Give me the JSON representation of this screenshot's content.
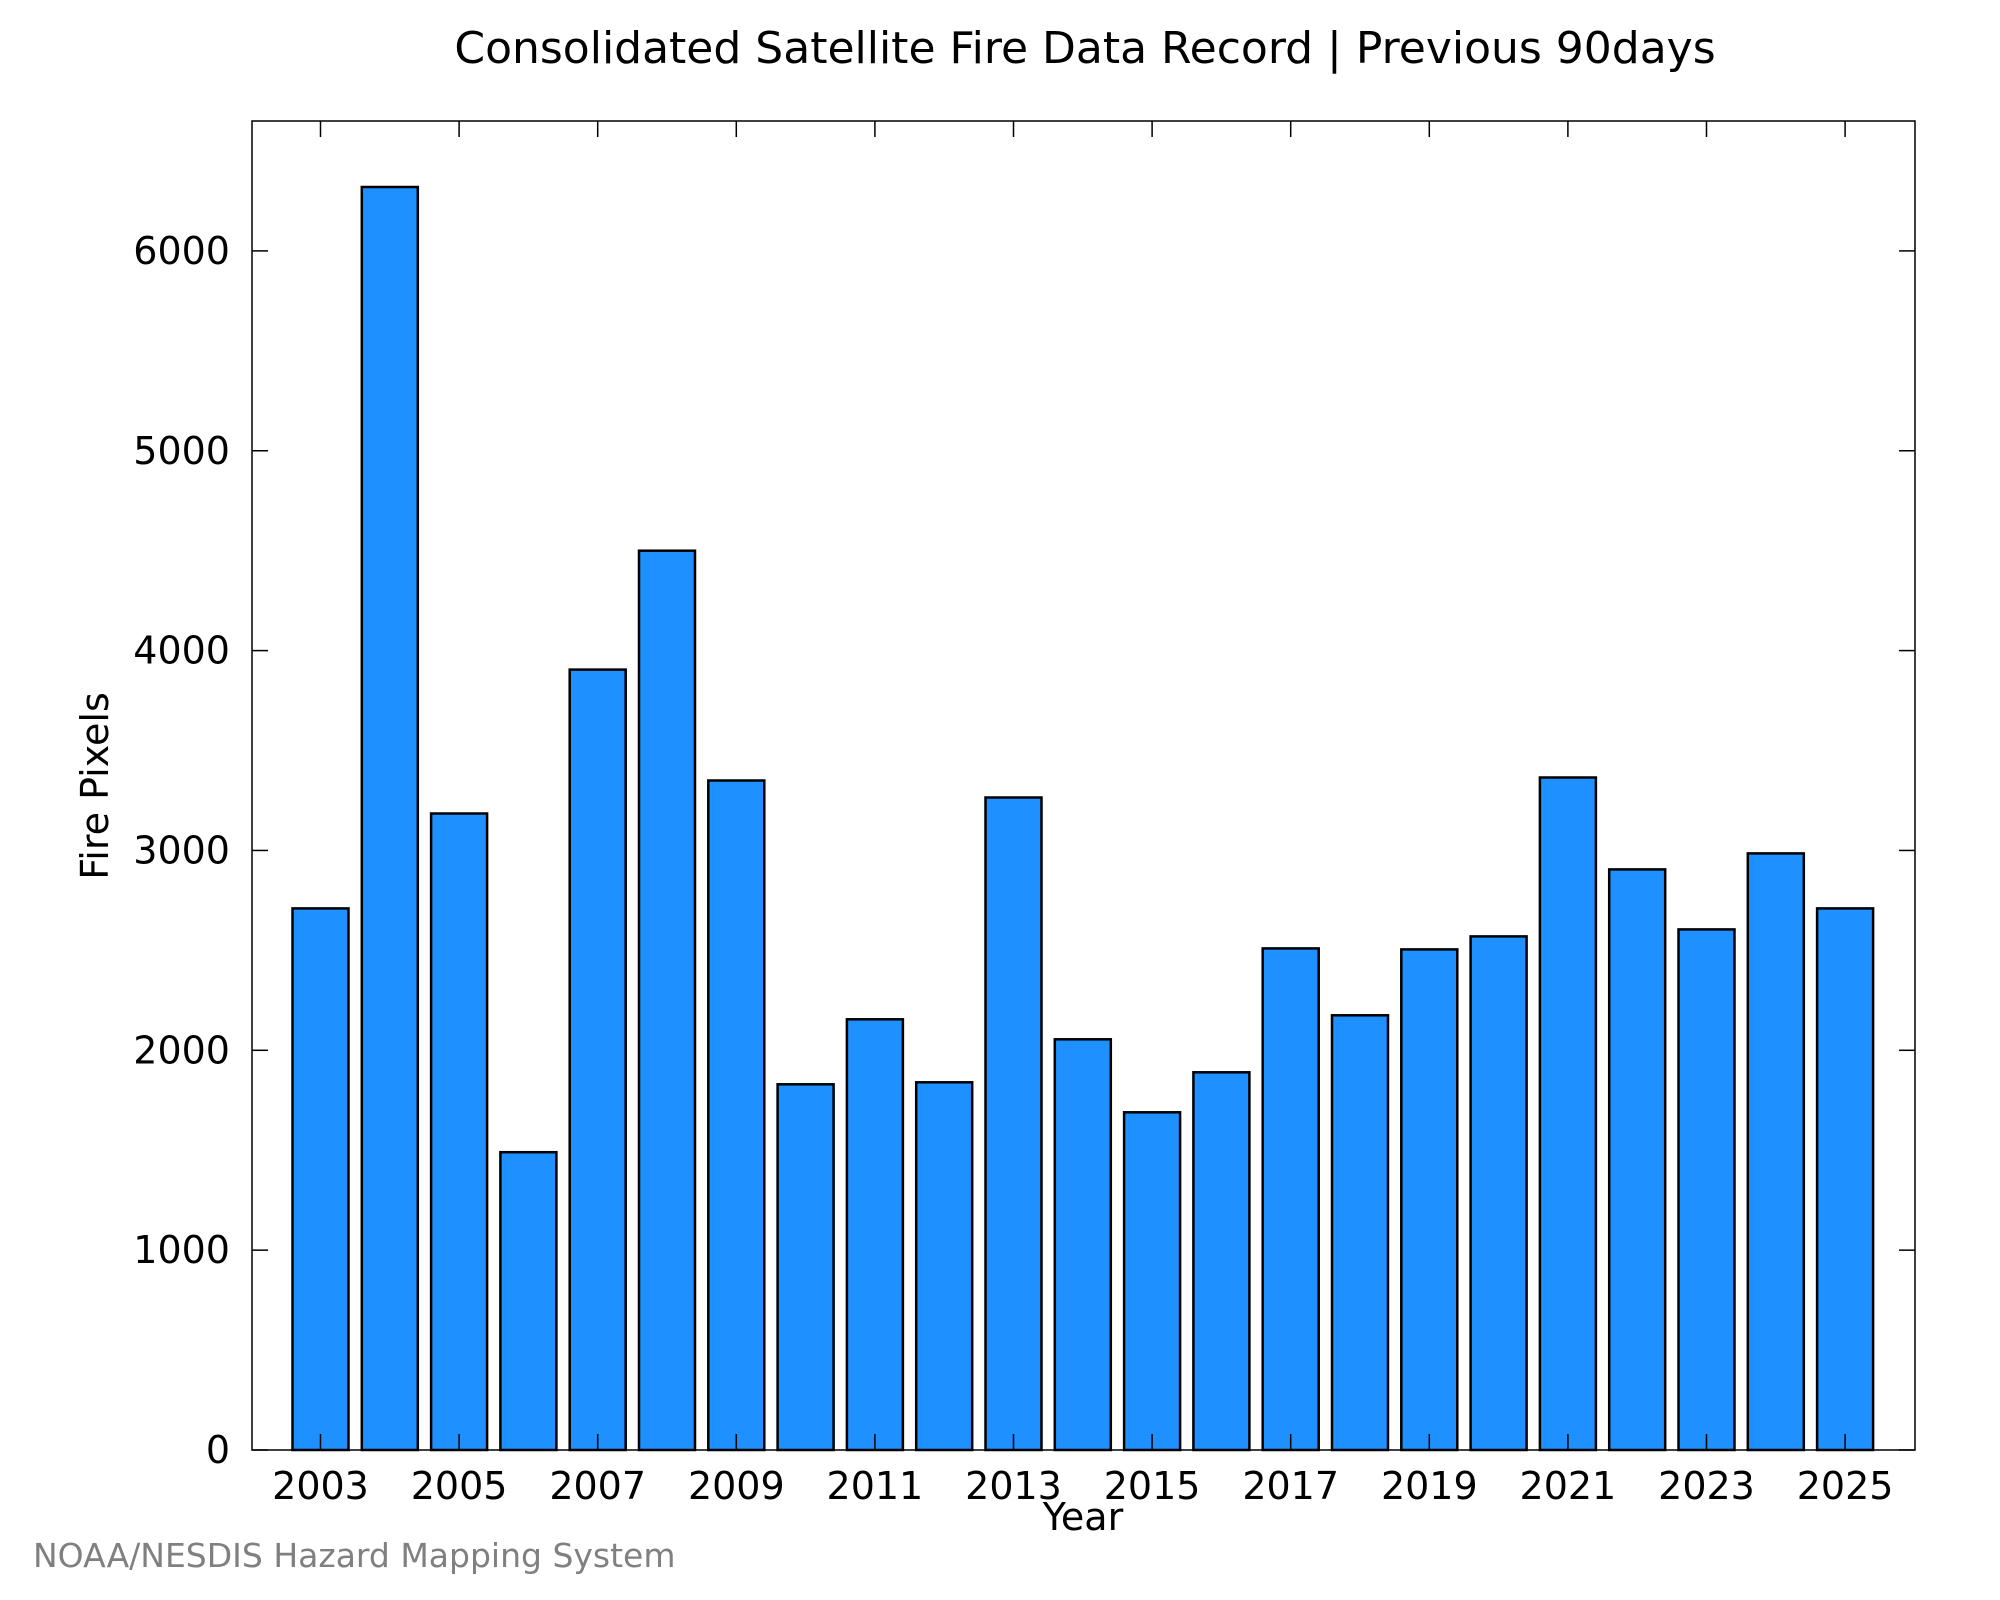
{
  "chart_data": {
    "type": "bar",
    "title": "Consolidated Satellite Fire Data Record | Previous 90days",
    "xlabel": "Year",
    "ylabel": "Fire Pixels",
    "categories": [
      "2003",
      "2004",
      "2005",
      "2006",
      "2007",
      "2008",
      "2009",
      "2010",
      "2011",
      "2012",
      "2013",
      "2014",
      "2015",
      "2016",
      "2017",
      "2018",
      "2019",
      "2020",
      "2021",
      "2022",
      "2023",
      "2024",
      "2025"
    ],
    "x_tick_labels": [
      "2003",
      "2005",
      "2007",
      "2009",
      "2011",
      "2013",
      "2015",
      "2017",
      "2019",
      "2021",
      "2023",
      "2025"
    ],
    "values": [
      2710,
      6320,
      3185,
      1490,
      3905,
      4500,
      3350,
      1830,
      2155,
      1840,
      3265,
      2055,
      1690,
      1890,
      2510,
      2175,
      2505,
      2570,
      3365,
      2905,
      2605,
      2985,
      2710
    ],
    "ylim": [
      0,
      6650
    ],
    "y_ticks": [
      "0",
      "1000",
      "2000",
      "3000",
      "4000",
      "5000",
      "6000"
    ],
    "bar_color": "#1e90ff",
    "grid": false,
    "legend": "none"
  },
  "footer": {
    "source": "NOAA/NESDIS Hazard Mapping System"
  }
}
